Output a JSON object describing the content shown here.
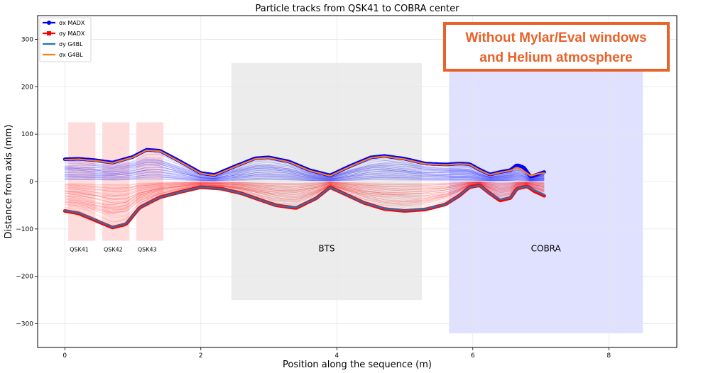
{
  "chart_data": {
    "type": "line",
    "title": "Particle tracks from QSK41 to COBRA center",
    "xlabel": "Position along the sequence (m)",
    "ylabel": "Distance from axis (mm)",
    "xlim": [
      -0.4,
      9.0
    ],
    "ylim": [
      -350,
      350
    ],
    "xticks": [
      0,
      2,
      4,
      6,
      8
    ],
    "yticks": [
      -300,
      -200,
      -100,
      0,
      100,
      200,
      300
    ],
    "xtick_labels": [
      "0",
      "2",
      "4",
      "6",
      "8"
    ],
    "ytick_labels": [
      "−300",
      "−200",
      "−100",
      "0",
      "100",
      "200",
      "300"
    ],
    "grid": true,
    "legend_position": "top-left",
    "legend": [
      {
        "label": "σx MADX",
        "color": "#0000ff",
        "marker": "circle"
      },
      {
        "label": "σy MADX",
        "color": "#ff0000",
        "marker": "square"
      },
      {
        "label": "σy G4BL",
        "color": "#1f77b4",
        "marker": "none"
      },
      {
        "label": "σx G4BL",
        "color": "#ff7f0e",
        "marker": "none"
      }
    ],
    "regions": [
      {
        "label": "QSK41",
        "x": [
          0.05,
          0.45
        ],
        "y": [
          -125,
          125
        ],
        "color": "#ffd0d0"
      },
      {
        "label": "QSK42",
        "x": [
          0.55,
          0.95
        ],
        "y": [
          -125,
          125
        ],
        "color": "#ffd0d0"
      },
      {
        "label": "QSK43",
        "x": [
          1.05,
          1.45
        ],
        "y": [
          -125,
          125
        ],
        "color": "#ffd0d0"
      },
      {
        "label": "BTS",
        "x": [
          2.45,
          5.25
        ],
        "y": [
          -250,
          250
        ],
        "color": "#e6e6e6"
      },
      {
        "label": "COBRA",
        "x": [
          5.65,
          8.5
        ],
        "y": [
          -320,
          300
        ],
        "color": "#d6d6ff"
      }
    ],
    "series": [
      {
        "name": "σx MADX",
        "color": "#0000ff",
        "x": [
          0,
          0.2,
          0.45,
          0.7,
          1.0,
          1.2,
          1.4,
          1.7,
          2.0,
          2.2,
          2.5,
          2.8,
          3.0,
          3.3,
          3.6,
          3.9,
          4.2,
          4.5,
          4.7,
          5.0,
          5.3,
          5.6,
          5.8,
          5.95,
          6.1,
          6.25,
          6.4,
          6.55,
          6.65,
          6.75,
          6.85,
          6.95,
          7.05
        ],
        "y": [
          47,
          48,
          45,
          40,
          52,
          67,
          65,
          42,
          18,
          14,
          32,
          49,
          51,
          42,
          24,
          13,
          33,
          51,
          54,
          48,
          38,
          36,
          38,
          37,
          25,
          15,
          20,
          24,
          35,
          30,
          10,
          15,
          20
        ]
      },
      {
        "name": "σy MADX",
        "color": "#ff0000",
        "x": [
          0,
          0.2,
          0.45,
          0.7,
          0.9,
          1.1,
          1.4,
          1.7,
          2.0,
          2.3,
          2.6,
          2.9,
          3.1,
          3.4,
          3.7,
          3.9,
          4.1,
          4.4,
          4.7,
          5.0,
          5.3,
          5.6,
          5.8,
          5.95,
          6.1,
          6.25,
          6.4,
          6.55,
          6.65,
          6.8,
          6.9,
          7.05
        ],
        "y": [
          -62,
          -67,
          -82,
          -97,
          -90,
          -55,
          -33,
          -22,
          -12,
          -15,
          -25,
          -40,
          -50,
          -56,
          -35,
          -12,
          -25,
          -45,
          -58,
          -62,
          -59,
          -48,
          -30,
          -12,
          -8,
          -25,
          -40,
          -35,
          -15,
          -10,
          -20,
          -30
        ]
      },
      {
        "name": "σy G4BL",
        "color": "#1f77b4",
        "x": [
          0,
          0.2,
          0.45,
          0.7,
          0.9,
          1.1,
          1.4,
          1.7,
          2.0,
          2.3,
          2.6,
          2.9,
          3.1,
          3.4,
          3.7,
          3.9,
          4.1,
          4.4,
          4.7,
          5.0,
          5.3,
          5.6,
          5.8,
          5.95,
          6.1,
          6.25,
          6.4,
          6.55,
          6.65,
          6.8,
          6.9,
          7.05
        ],
        "y": [
          -61,
          -66,
          -81,
          -96,
          -89,
          -55,
          -33,
          -22,
          -12,
          -15,
          -25,
          -40,
          -50,
          -55,
          -35,
          -12,
          -25,
          -45,
          -57,
          -61,
          -58,
          -48,
          -30,
          -12,
          -8,
          -25,
          -38,
          -34,
          -15,
          -10,
          -18,
          -28
        ]
      },
      {
        "name": "σx G4BL",
        "color": "#ff7f0e",
        "x": [
          0,
          0.2,
          0.45,
          0.7,
          1.0,
          1.2,
          1.4,
          1.7,
          2.0,
          2.2,
          2.5,
          2.8,
          3.0,
          3.3,
          3.6,
          3.9,
          4.2,
          4.5,
          4.7,
          5.0,
          5.3,
          5.6,
          5.8,
          5.95,
          6.1,
          6.25,
          6.4,
          6.55,
          6.65,
          6.75,
          6.85,
          6.95,
          7.05
        ],
        "y": [
          46,
          47,
          44,
          39,
          51,
          66,
          64,
          41,
          17,
          13,
          31,
          48,
          50,
          41,
          23,
          12,
          32,
          50,
          53,
          47,
          37,
          35,
          37,
          36,
          24,
          14,
          19,
          23,
          30,
          22,
          12,
          16,
          18
        ]
      }
    ]
  },
  "annotation": {
    "line1": "Without Mylar/Eval windows",
    "line2": "and Helium atmosphere",
    "border_color": "#e8622a"
  }
}
